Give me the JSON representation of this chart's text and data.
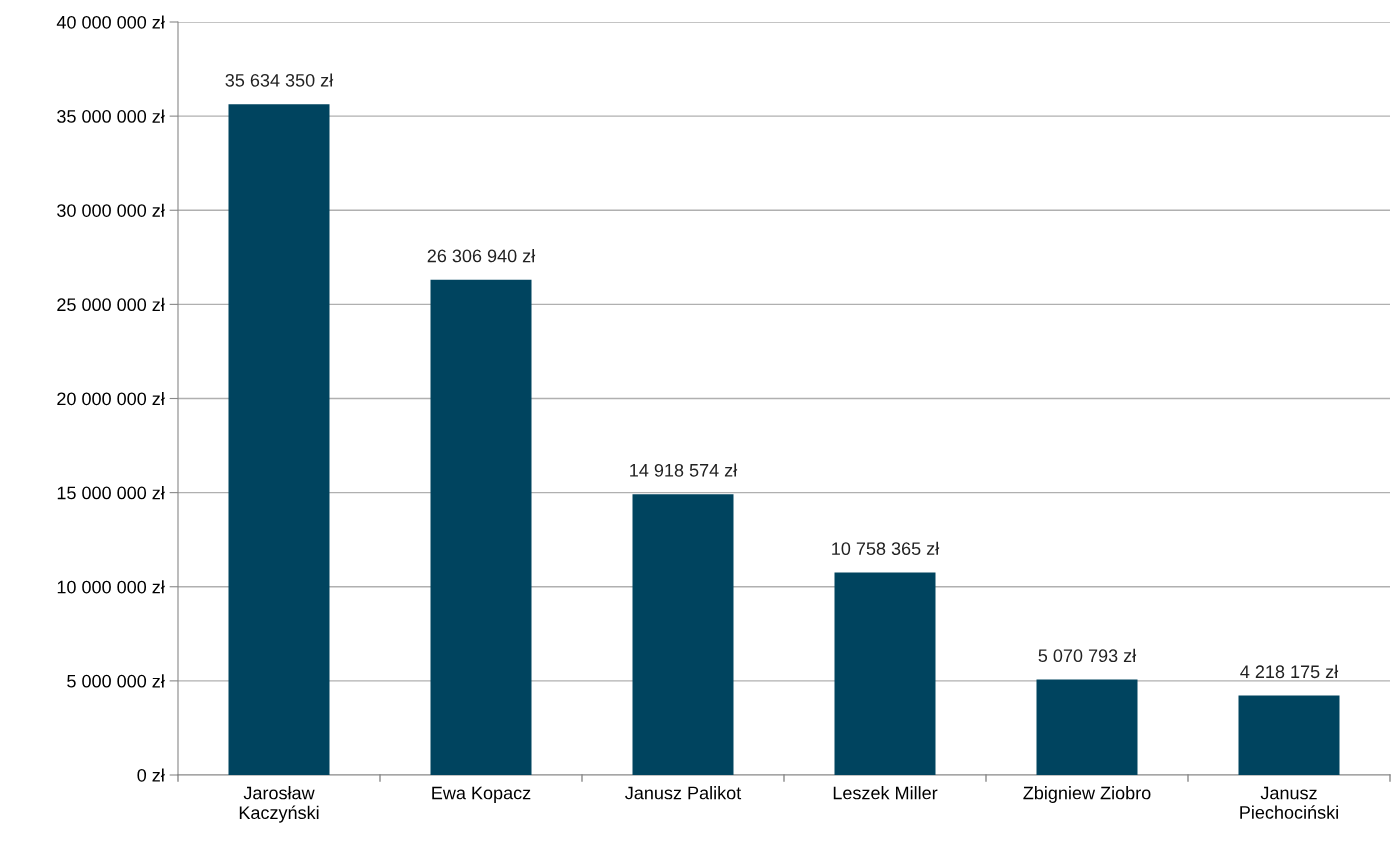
{
  "chart_data": {
    "type": "bar",
    "categories": [
      "Jarosław\nKaczyński",
      "Ewa Kopacz",
      "Janusz Palikot",
      "Leszek Miller",
      "Zbigniew Ziobro",
      "Janusz\nPiechociński"
    ],
    "values": [
      35634350,
      26306940,
      14918574,
      10758365,
      5070793,
      4218175
    ],
    "value_labels": [
      "35 634 350 zł",
      "26 306 940 zł",
      "14 918 574 zł",
      "10 758 365 zł",
      "5 070 793 zł",
      "4 218 175 zł"
    ],
    "color": "#00445f",
    "ylim": [
      0,
      40000000
    ],
    "yticks": [
      {
        "value": 0,
        "label": "0 zł"
      },
      {
        "value": 5000000,
        "label": "5 000 000 zł"
      },
      {
        "value": 10000000,
        "label": "10 000 000 zł"
      },
      {
        "value": 15000000,
        "label": "15 000 000 zł"
      },
      {
        "value": 20000000,
        "label": "20 000 000 zł"
      },
      {
        "value": 25000000,
        "label": "25 000 000 zł"
      },
      {
        "value": 30000000,
        "label": "30 000 000 zł"
      },
      {
        "value": 35000000,
        "label": "35 000 000 zł"
      },
      {
        "value": 40000000,
        "label": "40 000 000 zł"
      }
    ],
    "grid": "y",
    "legend": false
  }
}
